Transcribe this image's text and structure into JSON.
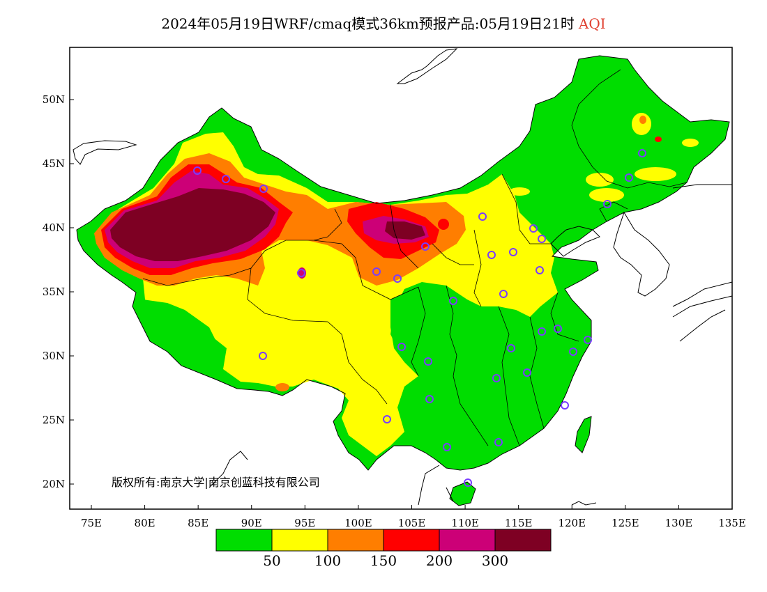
{
  "title": {
    "main": "2024年05月19日WRF/cmaq模式36km预报产品:05月19日21时",
    "variable": "AQI"
  },
  "axes": {
    "x_ticks": [
      "75E",
      "80E",
      "85E",
      "90E",
      "95E",
      "100E",
      "105E",
      "110E",
      "115E",
      "120E",
      "125E",
      "130E",
      "135E"
    ],
    "y_ticks": [
      "50N",
      "45N",
      "40N",
      "35N",
      "30N",
      "25N",
      "20N"
    ]
  },
  "copyright": "版权所有:南京大学|南京创蓝科技有限公司",
  "legend": {
    "colors": [
      "#00dd00",
      "#ffff00",
      "#ff7e00",
      "#ff0000",
      "#cc0077",
      "#7e0023"
    ],
    "labels": [
      "50",
      "100",
      "150",
      "200",
      "300"
    ]
  },
  "colors": {
    "frame": "#000000",
    "station_marker": "#7a3cff"
  }
}
